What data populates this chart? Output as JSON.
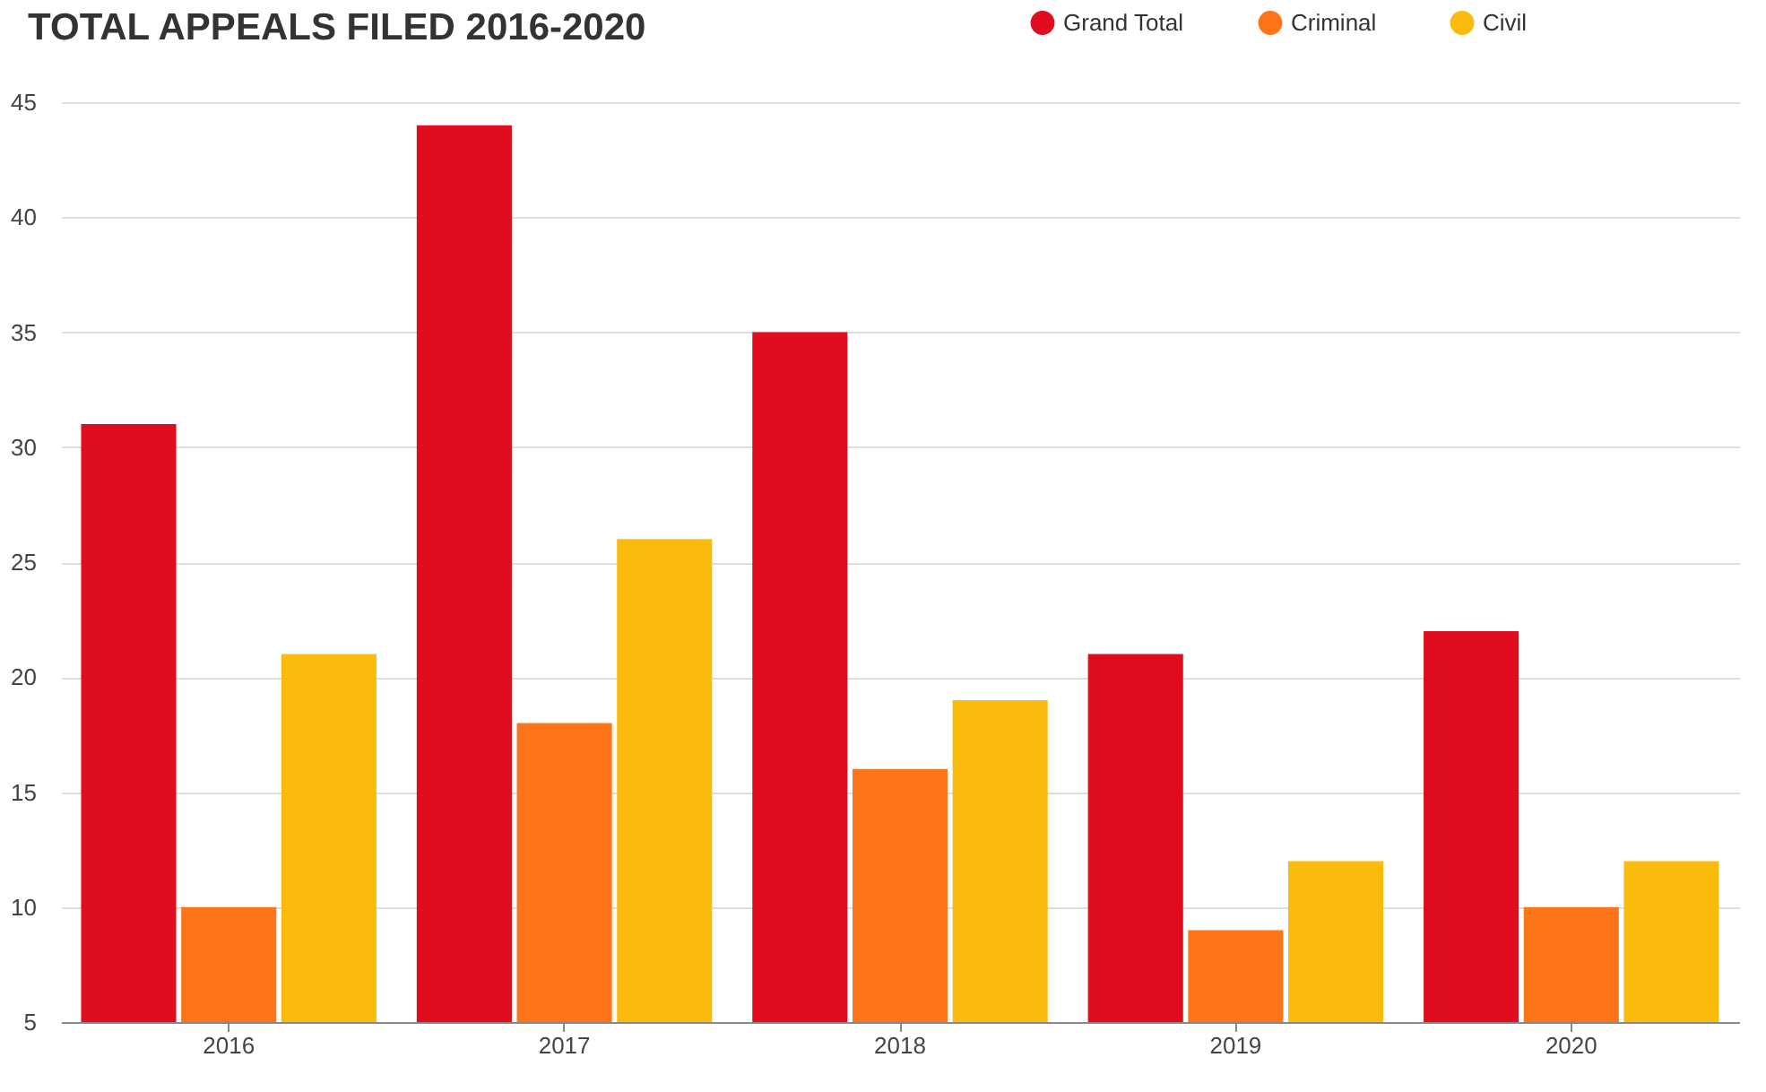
{
  "chart_data": {
    "type": "bar",
    "title": "TOTAL APPEALS FILED 2016-2020",
    "categories": [
      "2016",
      "2017",
      "2018",
      "2019",
      "2020"
    ],
    "series": [
      {
        "name": "Grand Total",
        "color": "#e00d1f",
        "values": [
          31,
          44,
          35,
          21,
          22
        ]
      },
      {
        "name": "Criminal",
        "color": "#fd7419",
        "values": [
          10,
          18,
          16,
          9,
          10
        ]
      },
      {
        "name": "Civil",
        "color": "#fbbb0c",
        "values": [
          21,
          26,
          19,
          12,
          12
        ]
      }
    ],
    "ylim": [
      5,
      45
    ],
    "yticks": [
      5,
      10,
      15,
      20,
      25,
      30,
      35,
      40,
      45
    ],
    "grid": "y",
    "legend": "top right",
    "marker": "circle"
  }
}
